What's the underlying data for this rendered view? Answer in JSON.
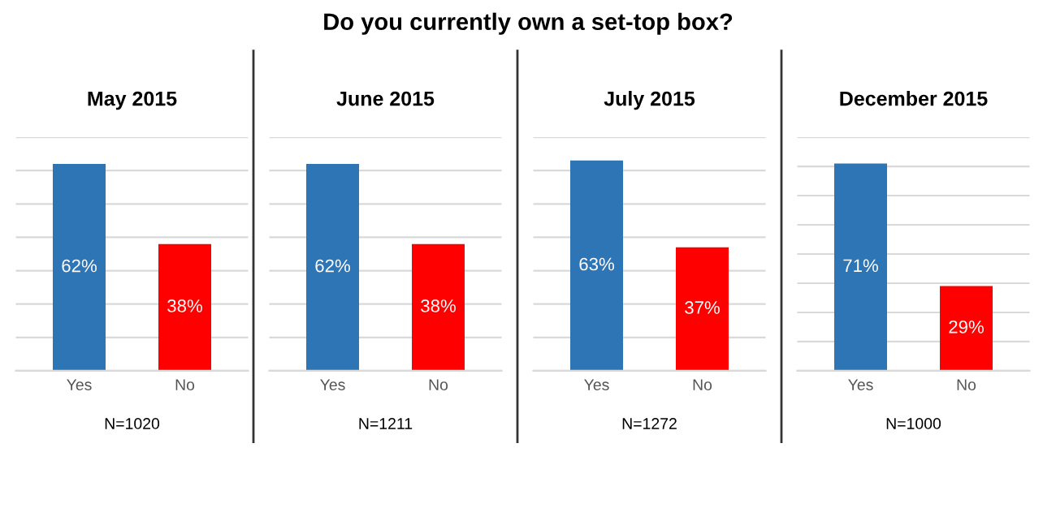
{
  "chart_data": [
    {
      "type": "bar",
      "title": "May 2015",
      "categories": [
        "Yes",
        "No"
      ],
      "values": [
        62,
        38
      ],
      "colors": [
        "#2e75b6",
        "#ff0000"
      ],
      "value_labels": [
        "62%",
        "38%"
      ],
      "ylim": [
        0,
        70
      ],
      "yticks": [
        {
          "value": 0,
          "label": null
        },
        {
          "value": 10,
          "label": null
        },
        {
          "value": 20,
          "label": null
        },
        {
          "value": 30,
          "label": null
        },
        {
          "value": 40,
          "label": null
        },
        {
          "value": 50,
          "label": null
        },
        {
          "value": 60,
          "label": null
        },
        {
          "value": 70,
          "label": null
        }
      ],
      "grid": "y",
      "tick_labels": "x",
      "annotations": [
        "Do you currently own a set-top box?",
        "N=1020"
      ]
    },
    {
      "type": "bar",
      "title": "June 2015",
      "categories": [
        "Yes",
        "No"
      ],
      "values": [
        62,
        38
      ],
      "colors": [
        "#2e75b6",
        "#ff0000"
      ],
      "value_labels": [
        "62%",
        "38%"
      ],
      "ylim": [
        0,
        70
      ],
      "yticks": [
        {
          "value": 0,
          "label": null
        },
        {
          "value": 10,
          "label": null
        },
        {
          "value": 20,
          "label": null
        },
        {
          "value": 30,
          "label": null
        },
        {
          "value": 40,
          "label": null
        },
        {
          "value": 50,
          "label": null
        },
        {
          "value": 60,
          "label": null
        },
        {
          "value": 70,
          "label": null
        }
      ],
      "grid": "y",
      "tick_labels": "x",
      "annotations": [
        "N=1211"
      ]
    },
    {
      "type": "bar",
      "title": "July 2015",
      "categories": [
        "Yes",
        "No"
      ],
      "values": [
        63,
        37
      ],
      "colors": [
        "#2e75b6",
        "#ff0000"
      ],
      "value_labels": [
        "63%",
        "37%"
      ],
      "ylim": [
        0,
        70
      ],
      "yticks": [
        {
          "value": 0,
          "label": null
        },
        {
          "value": 10,
          "label": null
        },
        {
          "value": 20,
          "label": null
        },
        {
          "value": 30,
          "label": null
        },
        {
          "value": 40,
          "label": null
        },
        {
          "value": 50,
          "label": null
        },
        {
          "value": 60,
          "label": null
        },
        {
          "value": 70,
          "label": null
        }
      ],
      "grid": "y",
      "tick_labels": "x",
      "annotations": [
        "N=1272"
      ]
    },
    {
      "type": "bar",
      "title": "December 2015",
      "categories": [
        "Yes",
        "No"
      ],
      "values": [
        71,
        29
      ],
      "colors": [
        "#2e75b6",
        "#ff0000"
      ],
      "value_labels": [
        "71%",
        "29%"
      ],
      "ylim": [
        0,
        80
      ],
      "yticks": [
        {
          "value": 0,
          "label": null
        },
        {
          "value": 10,
          "label": null
        },
        {
          "value": 20,
          "label": null
        },
        {
          "value": 30,
          "label": null
        },
        {
          "value": 40,
          "label": null
        },
        {
          "value": 50,
          "label": null
        },
        {
          "value": 60,
          "label": null
        },
        {
          "value": 70,
          "label": null
        },
        {
          "value": 80,
          "label": null
        }
      ],
      "grid": "y",
      "tick_labels": "x",
      "annotations": [
        "N=1000"
      ]
    }
  ]
}
